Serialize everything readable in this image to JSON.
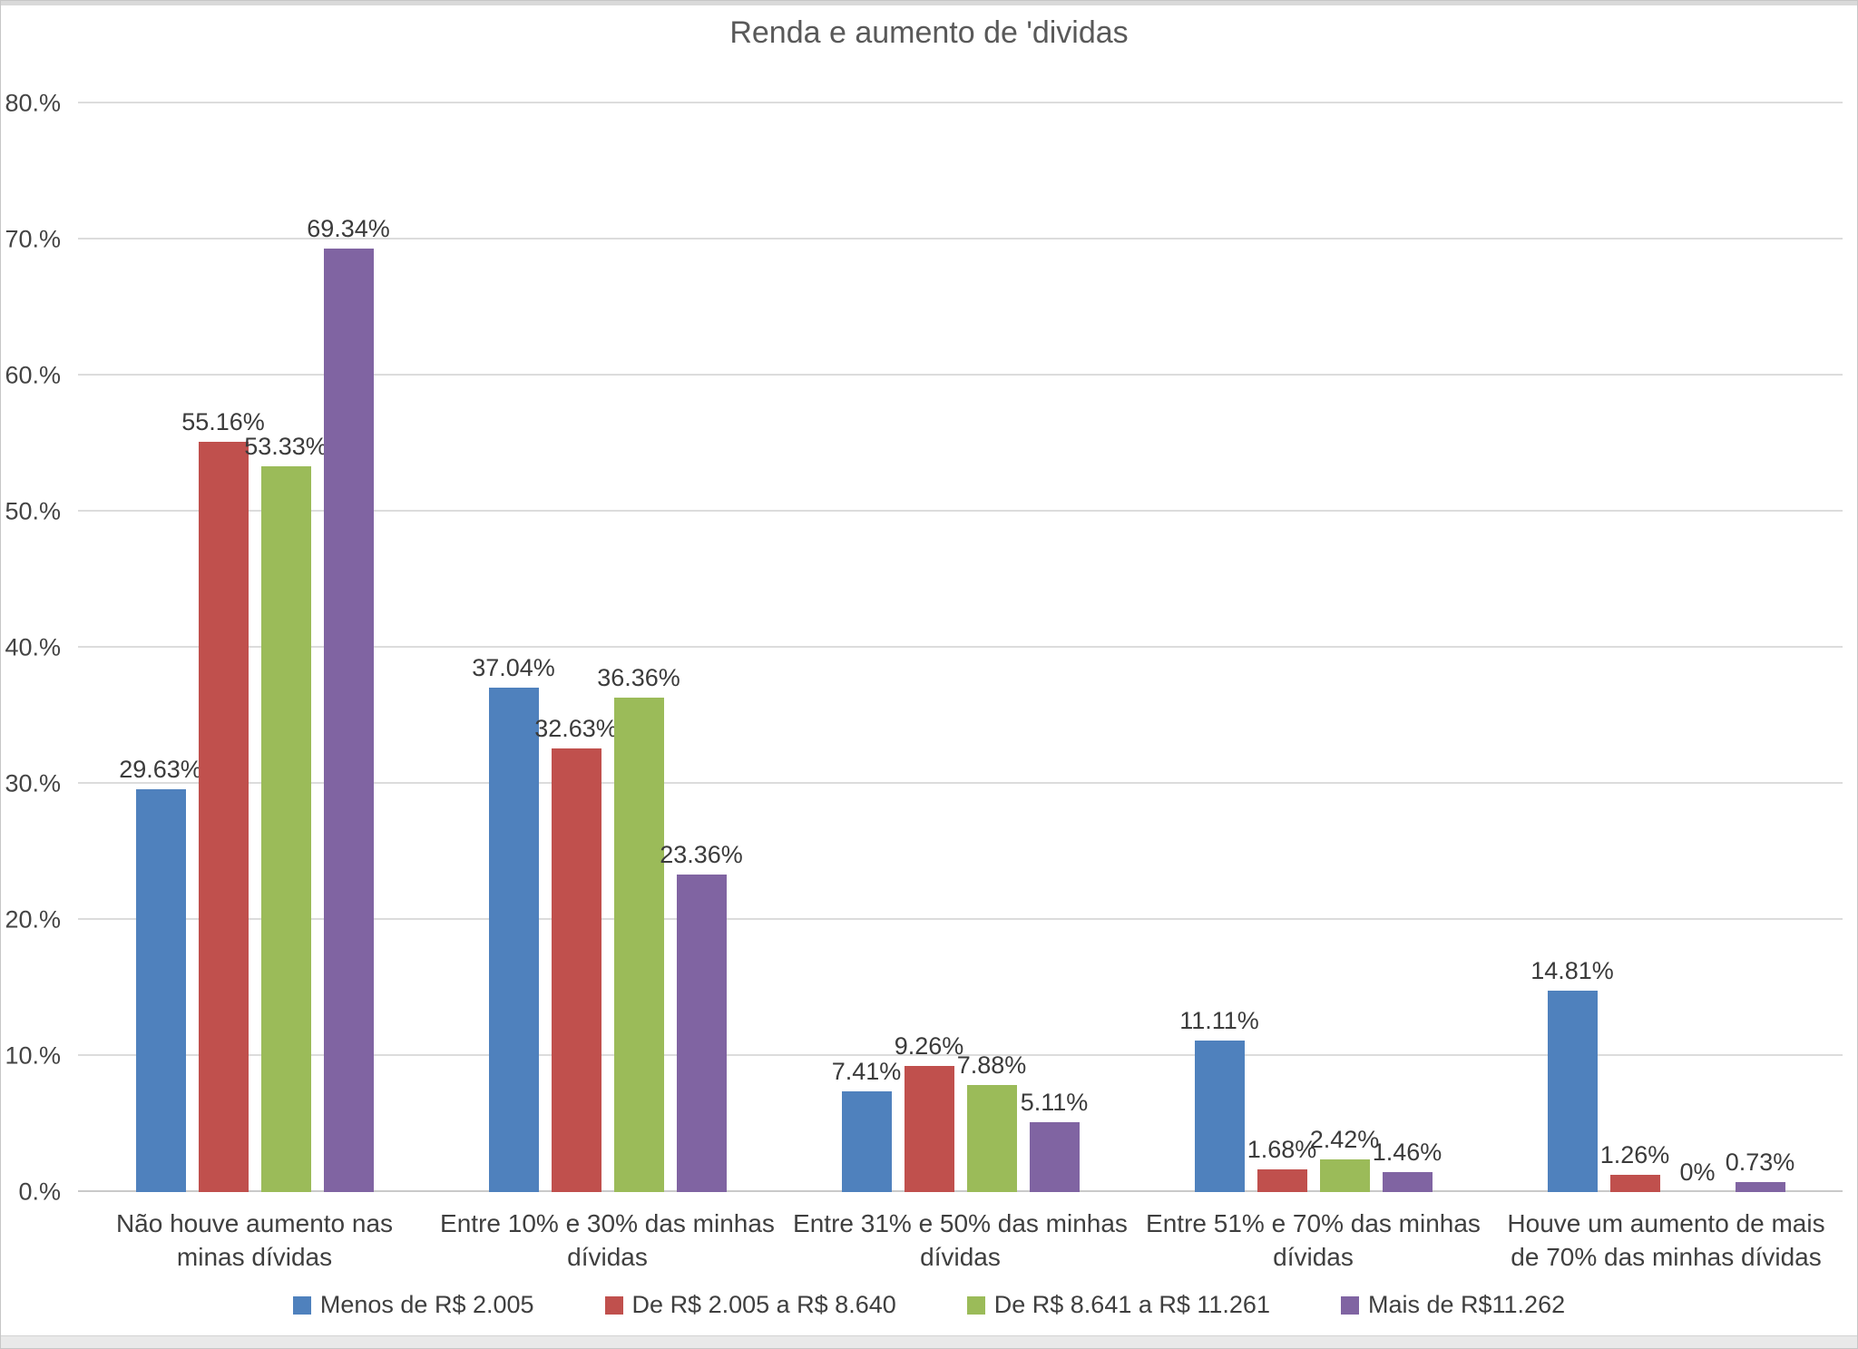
{
  "chart_data": {
    "type": "bar",
    "title": "Renda e aumento de 'dividas",
    "xlabel": "",
    "ylabel": "",
    "ylim": [
      0,
      80
    ],
    "grid": true,
    "legend_position": "bottom",
    "y_ticks": [
      {
        "value": 0,
        "label": "0.%"
      },
      {
        "value": 10,
        "label": "10.%"
      },
      {
        "value": 20,
        "label": "20.%"
      },
      {
        "value": 30,
        "label": "30.%"
      },
      {
        "value": 40,
        "label": "40.%"
      },
      {
        "value": 50,
        "label": "50.%"
      },
      {
        "value": 60,
        "label": "60.%"
      },
      {
        "value": 70,
        "label": "70.%"
      },
      {
        "value": 80,
        "label": "80.%"
      }
    ],
    "categories": [
      "Não houve aumento nas minas dívidas",
      "Entre 10% e 30% das minhas dívidas",
      "Entre 31% e 50% das minhas dívidas",
      "Entre 51% e 70% das minhas dívidas",
      "Houve um aumento de mais de 70% das minhas dívidas"
    ],
    "series": [
      {
        "name": "Menos de R$ 2.005",
        "color": "#4F81BD",
        "values": [
          29.63,
          37.04,
          7.41,
          11.11,
          14.81
        ],
        "labels": [
          "29.63%",
          "37.04%",
          "7.41%",
          "11.11%",
          "14.81%"
        ]
      },
      {
        "name": "De R$ 2.005 a R$ 8.640",
        "color": "#C0504D",
        "values": [
          55.16,
          32.63,
          9.26,
          1.68,
          1.26
        ],
        "labels": [
          "55.16%",
          "32.63%",
          "9.26%",
          "1.68%",
          "1.26%"
        ]
      },
      {
        "name": "De R$ 8.641 a R$ 11.261",
        "color": "#9BBB59",
        "values": [
          53.33,
          36.36,
          7.88,
          2.42,
          0
        ],
        "labels": [
          "53.33%",
          "36.36%",
          "7.88%",
          "2.42%",
          "0%"
        ]
      },
      {
        "name": "Mais de R$11.262",
        "color": "#8064A2",
        "values": [
          69.34,
          23.36,
          5.11,
          1.46,
          0.73
        ],
        "labels": [
          "69.34%",
          "23.36%",
          "5.11%",
          "1.46%",
          "0.73%"
        ]
      }
    ]
  }
}
